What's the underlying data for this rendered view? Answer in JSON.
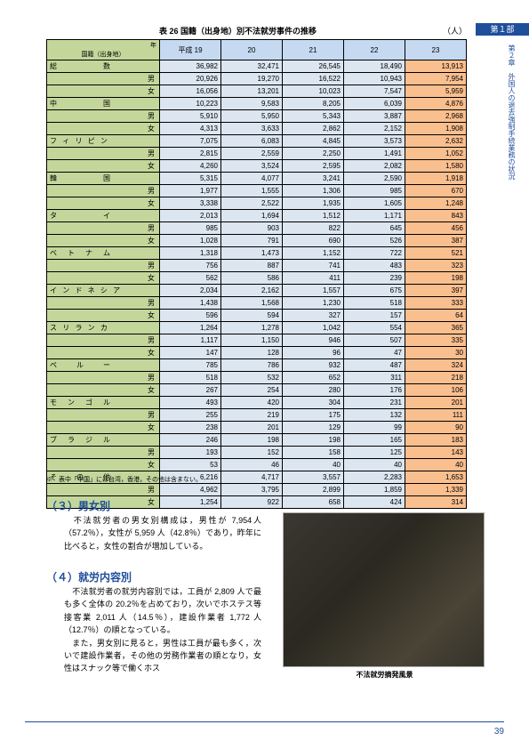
{
  "header": {
    "part_label": "第１部"
  },
  "side_label": "第２章　外国人の退去強制手続業務の状況",
  "table": {
    "title": "表 26 国籍（出身地）別不法就労事件の推移",
    "unit": "（人）",
    "diag_top": "年",
    "diag_bottom": "国籍（出身地）",
    "years": [
      "平成 19",
      "20",
      "21",
      "22",
      "23"
    ],
    "categories": [
      {
        "label": "総　　　　　数",
        "sub": [
          "男",
          "女"
        ]
      },
      {
        "label": "中　　　　　国",
        "sub": [
          "男",
          "女"
        ]
      },
      {
        "label": "フ ィ リ ピ ン",
        "sub": [
          "男",
          "女"
        ]
      },
      {
        "label": "韓　　　　　国",
        "sub": [
          "男",
          "女"
        ]
      },
      {
        "label": "タ　　　　　イ",
        "sub": [
          "男",
          "女"
        ]
      },
      {
        "label": "ベ　ト　ナ　ム",
        "sub": [
          "男",
          "女"
        ]
      },
      {
        "label": "イ ン ド ネ シ ア",
        "sub": [
          "男",
          "女"
        ]
      },
      {
        "label": "ス リ ラ ン カ",
        "sub": [
          "男",
          "女"
        ]
      },
      {
        "label": "ペ　　ル　　ー",
        "sub": [
          "男",
          "女"
        ]
      },
      {
        "label": "モ　ン　ゴ　ル",
        "sub": [
          "男",
          "女"
        ]
      },
      {
        "label": "ブ　ラ　ジ　ル",
        "sub": [
          "男",
          "女"
        ]
      },
      {
        "label": "そ　　の　　他",
        "sub": [
          "男",
          "女"
        ]
      }
    ],
    "rows": [
      [
        [
          "36,982",
          "32,471",
          "26,545",
          "18,490",
          "13,913"
        ],
        [
          "20,926",
          "19,270",
          "16,522",
          "10,943",
          "7,954"
        ],
        [
          "16,056",
          "13,201",
          "10,023",
          "7,547",
          "5,959"
        ]
      ],
      [
        [
          "10,223",
          "9,583",
          "8,205",
          "6,039",
          "4,876"
        ],
        [
          "5,910",
          "5,950",
          "5,343",
          "3,887",
          "2,968"
        ],
        [
          "4,313",
          "3,633",
          "2,862",
          "2,152",
          "1,908"
        ]
      ],
      [
        [
          "7,075",
          "6,083",
          "4,845",
          "3,573",
          "2,632"
        ],
        [
          "2,815",
          "2,559",
          "2,250",
          "1,491",
          "1,052"
        ],
        [
          "4,260",
          "3,524",
          "2,595",
          "2,082",
          "1,580"
        ]
      ],
      [
        [
          "5,315",
          "4,077",
          "3,241",
          "2,590",
          "1,918"
        ],
        [
          "1,977",
          "1,555",
          "1,306",
          "985",
          "670"
        ],
        [
          "3,338",
          "2,522",
          "1,935",
          "1,605",
          "1,248"
        ]
      ],
      [
        [
          "2,013",
          "1,694",
          "1,512",
          "1,171",
          "843"
        ],
        [
          "985",
          "903",
          "822",
          "645",
          "456"
        ],
        [
          "1,028",
          "791",
          "690",
          "526",
          "387"
        ]
      ],
      [
        [
          "1,318",
          "1,473",
          "1,152",
          "722",
          "521"
        ],
        [
          "756",
          "887",
          "741",
          "483",
          "323"
        ],
        [
          "562",
          "586",
          "411",
          "239",
          "198"
        ]
      ],
      [
        [
          "2,034",
          "2,162",
          "1,557",
          "675",
          "397"
        ],
        [
          "1,438",
          "1,568",
          "1,230",
          "518",
          "333"
        ],
        [
          "596",
          "594",
          "327",
          "157",
          "64"
        ]
      ],
      [
        [
          "1,264",
          "1,278",
          "1,042",
          "554",
          "365"
        ],
        [
          "1,117",
          "1,150",
          "946",
          "507",
          "335"
        ],
        [
          "147",
          "128",
          "96",
          "47",
          "30"
        ]
      ],
      [
        [
          "785",
          "786",
          "932",
          "487",
          "324"
        ],
        [
          "518",
          "532",
          "652",
          "311",
          "218"
        ],
        [
          "267",
          "254",
          "280",
          "176",
          "106"
        ]
      ],
      [
        [
          "493",
          "420",
          "304",
          "231",
          "201"
        ],
        [
          "255",
          "219",
          "175",
          "132",
          "111"
        ],
        [
          "238",
          "201",
          "129",
          "99",
          "90"
        ]
      ],
      [
        [
          "246",
          "198",
          "198",
          "165",
          "183"
        ],
        [
          "193",
          "152",
          "158",
          "125",
          "143"
        ],
        [
          "53",
          "46",
          "40",
          "40",
          "40"
        ]
      ],
      [
        [
          "6,216",
          "4,717",
          "3,557",
          "2,283",
          "1,653"
        ],
        [
          "4,962",
          "3,795",
          "2,899",
          "1,859",
          "1,339"
        ],
        [
          "1,254",
          "922",
          "658",
          "424",
          "314"
        ]
      ]
    ],
    "footnote": "※　表中「中国」には台湾，香港，その他は含まない。"
  },
  "sections": {
    "s3": {
      "title": "（３）男女別",
      "text": "　不法就労者の男女別構成は，男性が 7,954人（57.2％），女性が 5,959 人（42.8％）であり，昨年に比べると，女性の割合が増加している。"
    },
    "s4": {
      "title": "（４）就労内容別",
      "text": "　不法就労者の就労内容別では，工員が 2,809 人で最も多く全体の 20.2％を占めており，次いでホステス等接客業 2,011 人（14.5％），建設作業者 1,772 人（12.7％）の順となっている。\n　また，男女別に見ると，男性は工員が最も多く，次いで建設作業者，その他の労務作業者の順となり，女性はスナック等で働くホス"
    }
  },
  "photo_caption": "不法就労摘発風景",
  "page_number": "39"
}
